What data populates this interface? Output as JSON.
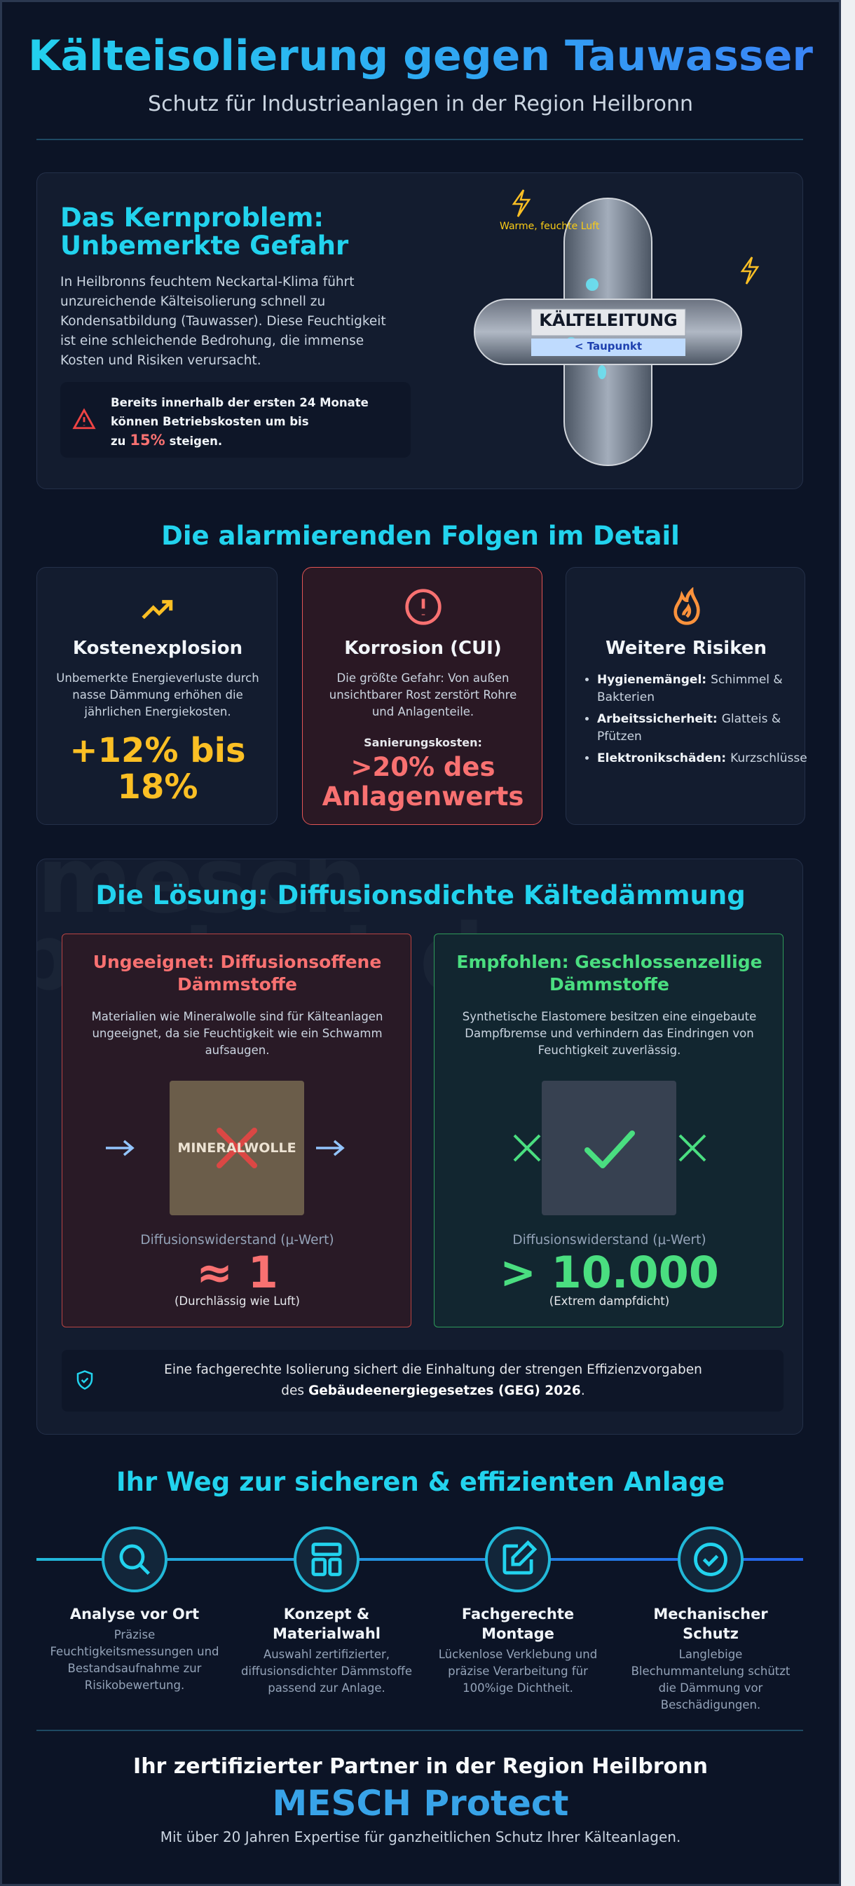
{
  "header": {
    "title": "Kälteisolierung gegen Tauwasser",
    "subtitle": "Schutz für Industrieanlagen in der Region Heilbronn"
  },
  "problem": {
    "title": "Das Kernproblem: Unbemerkte Gefahr",
    "text": "In Heilbronns feuchtem Neckartal-Klima führt unzureichende Kälteisolierung schnell zu Kondensatbildung (Tauwasser). Diese Feuchtigkeit ist eine schleichende Bedrohung, die immense Kosten und Risiken verursacht.",
    "alert": {
      "before": "Bereits innerhalb der ersten 24 Monate können Betriebskosten um bis zu",
      "highlight": "15%",
      "after": "steigen."
    },
    "illustration": {
      "air_label": "Warme, feuchte Luft",
      "pipe_label": "KÄLTELEITUNG",
      "dew_label": "< Taupunkt"
    }
  },
  "consequences": {
    "title": "Die alarmierenden Folgen im Detail",
    "cost": {
      "title": "Kostenexplosion",
      "text": "Unbemerkte Energieverluste durch nasse Dämmung erhöhen die jährlichen Energiekosten.",
      "stat": "+12% bis 18%"
    },
    "corrosion": {
      "title": "Korrosion (CUI)",
      "text": "Die größte Gefahr: Von außen unsichtbarer Rost zerstört Rohre und Anlagenteile.",
      "stat_label": "Sanierungskosten:",
      "stat": ">20% des Anlagenwerts"
    },
    "risks": {
      "title": "Weitere Risiken",
      "items": [
        {
          "label": "Hygienemängel:",
          "text": "Schimmel & Bakterien"
        },
        {
          "label": "Arbeitssicherheit:",
          "text": "Glatteis & Pfützen"
        },
        {
          "label": "Elektronikschäden:",
          "text": "Kurzschlüsse"
        }
      ]
    }
  },
  "solution": {
    "title": "Die Lösung: Diffusionsdichte Kältedämmung",
    "watermark": [
      "mesch",
      "protect.de"
    ],
    "bad": {
      "title": "Ungeeignet: Diffusionsoffene Dämmstoffe",
      "text": "Materialien wie Mineralwolle sind für Kälteanlagen ungeeignet, da sie Feuchtigkeit wie ein Schwamm aufsaugen.",
      "material": "MINERALWOLLE",
      "metric_label": "Diffusionswiderstand (μ-Wert)",
      "metric": "≈ 1",
      "metric_note": "(Durchlässig wie Luft)"
    },
    "good": {
      "title": "Empfohlen: Geschlossenzellige Dämmstoffe",
      "text": "Synthetische Elastomere besitzen eine eingebaute Dampfbremse und verhindern das Eindringen von Feuchtigkeit zuverlässig.",
      "metric_label": "Diffusionswiderstand (μ-Wert)",
      "metric": "> 10.000",
      "metric_note": "(Extrem dampfdicht)"
    },
    "note": {
      "before": "Eine fachgerechte Isolierung sichert die Einhaltung der strengen Effizienzvorgaben des",
      "bold": "Gebäudeenergiegesetzes (GEG) 2026",
      "after": "."
    }
  },
  "steps": {
    "title": "Ihr Weg zur sicheren & effizienten Anlage",
    "items": [
      {
        "title": "Analyse vor Ort",
        "text": "Präzise Feuchtigkeitsmessungen und Bestandsaufnahme zur Risikobewertung."
      },
      {
        "title": "Konzept & Materialwahl",
        "text": "Auswahl zertifizierter, diffusionsdichter Dämmstoffe passend zur Anlage."
      },
      {
        "title": "Fachgerechte Montage",
        "text": "Lückenlose Verklebung und präzise Verarbeitung für 100%ige Dichtheit."
      },
      {
        "title": "Mechanischer Schutz",
        "text": "Langlebige Blechummantelung schützt die Dämmung vor Beschädigungen."
      }
    ]
  },
  "footer": {
    "title": "Ihr zertifizierter Partner in der Region Heilbronn",
    "brand": "MESCH Protect",
    "text": "Mit über 20 Jahren Expertise für ganzheitlichen Schutz Ihrer Kälteanlagen."
  }
}
